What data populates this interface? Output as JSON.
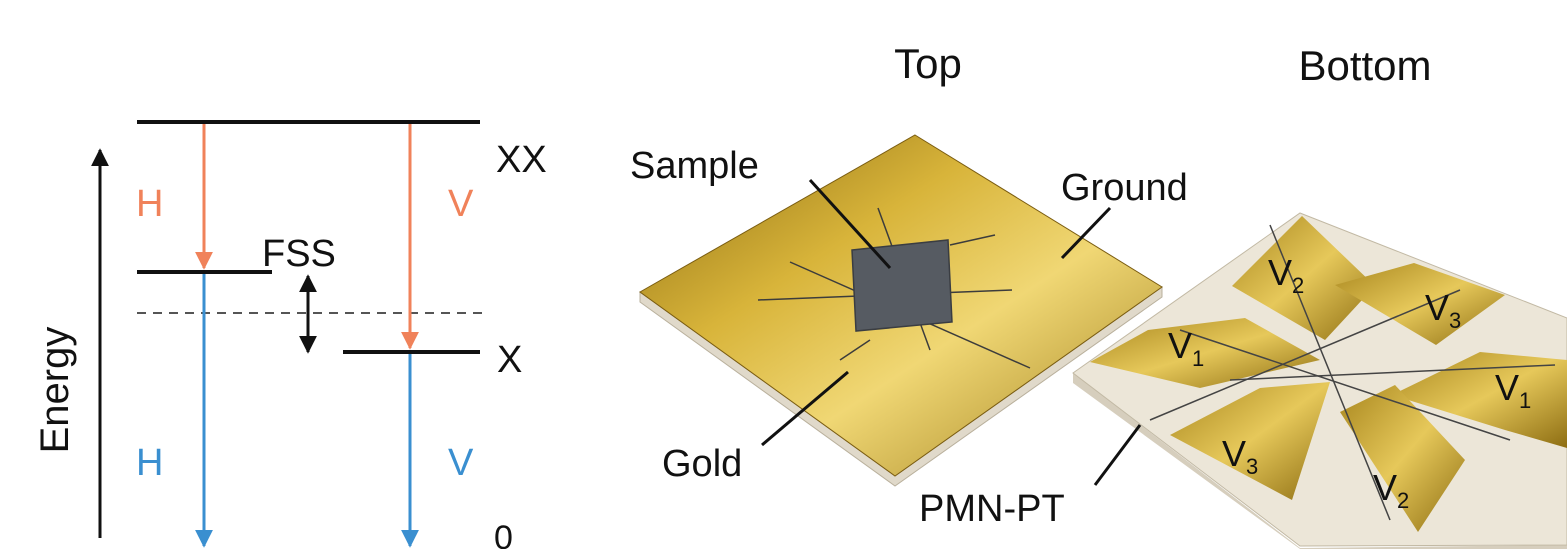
{
  "energy_diagram": {
    "axis_label": "Energy",
    "levels": {
      "xx": "XX",
      "x": "X",
      "zero": "0"
    },
    "fss_label": "FSS",
    "polarizations": {
      "h_upper": "H",
      "v_upper": "V",
      "h_lower": "H",
      "v_lower": "V"
    },
    "colors": {
      "upper_transition": "#f0825a",
      "lower_transition": "#3a8fd0",
      "level": "#111111"
    }
  },
  "device_diagram": {
    "top_heading": "Top",
    "bottom_heading": "Bottom",
    "callouts": {
      "sample": "Sample",
      "ground": "Ground",
      "gold": "Gold",
      "pmn_pt": "PMN-PT"
    },
    "electrodes": [
      {
        "base": "V",
        "sub": "2"
      },
      {
        "base": "V",
        "sub": "3"
      },
      {
        "base": "V",
        "sub": "1"
      },
      {
        "base": "V",
        "sub": "1"
      },
      {
        "base": "V",
        "sub": "3"
      },
      {
        "base": "V",
        "sub": "2"
      }
    ],
    "colors": {
      "gold": "#c9a227",
      "substrate": "#e9e2d3",
      "sample": "#565b62"
    }
  }
}
